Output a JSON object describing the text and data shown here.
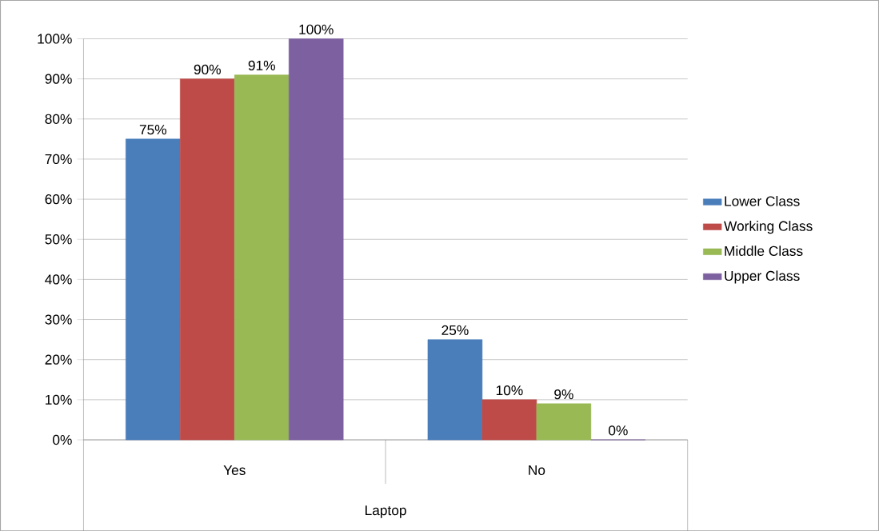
{
  "chart_data": {
    "type": "bar",
    "xlabel": "Laptop",
    "categories": [
      "Yes",
      "No"
    ],
    "series": [
      {
        "name": "Lower Class",
        "color": "#4a7ebb",
        "values": [
          75,
          25
        ],
        "value_labels": [
          "75%",
          "25%"
        ]
      },
      {
        "name": "Working Class",
        "color": "#be4b48",
        "values": [
          90,
          10
        ],
        "value_labels": [
          "90%",
          "10%"
        ]
      },
      {
        "name": "Middle Class",
        "color": "#98b954",
        "values": [
          91,
          9
        ],
        "value_labels": [
          "91%",
          "9%"
        ]
      },
      {
        "name": "Upper Class",
        "color": "#7d60a0",
        "values": [
          100,
          0
        ],
        "value_labels": [
          "100%",
          "0%"
        ]
      }
    ],
    "ylim": [
      0,
      100
    ],
    "yticks": [
      {
        "value": 0,
        "label": "0%"
      },
      {
        "value": 10,
        "label": "10%"
      },
      {
        "value": 20,
        "label": "20%"
      },
      {
        "value": 30,
        "label": "30%"
      },
      {
        "value": 40,
        "label": "40%"
      },
      {
        "value": 50,
        "label": "50%"
      },
      {
        "value": 60,
        "label": "60%"
      },
      {
        "value": 70,
        "label": "70%"
      },
      {
        "value": 80,
        "label": "80%"
      },
      {
        "value": 90,
        "label": "90%"
      },
      {
        "value": 100,
        "label": "100%"
      }
    ],
    "grid": "y",
    "legend": "right"
  }
}
